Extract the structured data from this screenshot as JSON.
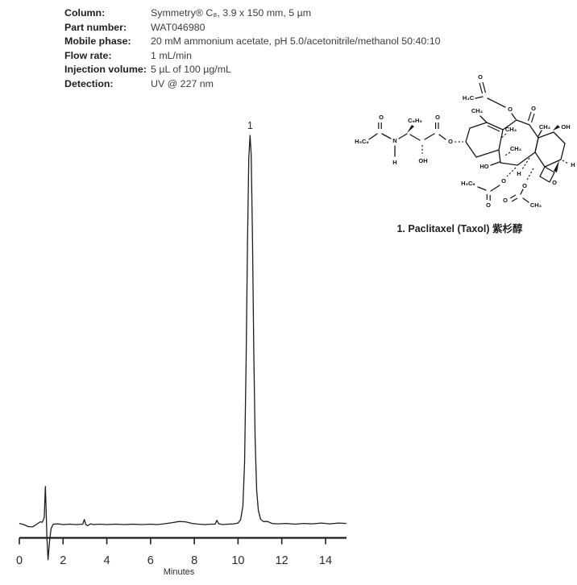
{
  "conditions": {
    "rows": [
      {
        "label": "Column:",
        "value": "Symmetry® C₈, 3.9 x 150 mm, 5 µm"
      },
      {
        "label": "Part number:",
        "value": "WAT046980"
      },
      {
        "label": "Mobile phase:",
        "value": "20 mM ammonium acetate, pH 5.0/acetonitrile/methanol 50:40:10"
      },
      {
        "label": "Flow rate:",
        "value": "1 mL/min"
      },
      {
        "label": "Injection volume:",
        "value": "5 µL of 100 µg/mL"
      },
      {
        "label": "Detection:",
        "value": "UV @ 227 nm"
      }
    ]
  },
  "structure": {
    "caption": "1. Paclitaxel (Taxol) 紫杉醇",
    "atom_labels": [
      "H₅C₆",
      "O",
      "N",
      "H",
      "C₆H₅",
      "OH",
      "O",
      "O",
      "CH₃",
      "O",
      "H₃C",
      "O",
      "O",
      "CH₃",
      "OH",
      "CH₃",
      "CH₃",
      "HO",
      "H",
      "H",
      "O",
      "H₅C₆",
      "O",
      "O",
      "O",
      "O",
      "CH₃"
    ]
  },
  "chart_data": {
    "type": "line",
    "title": "",
    "xlabel": "Minutes",
    "ylabel": "",
    "xlim": [
      0,
      15
    ],
    "ylim": [
      -0.1,
      1.08
    ],
    "x_ticks": [
      0,
      2,
      4,
      6,
      8,
      10,
      12,
      14
    ],
    "grid": false,
    "legend_position": "none",
    "peaks": [
      {
        "label": "1",
        "retention_time_min": 10.55,
        "relative_height": 1.0,
        "compound": "Paclitaxel (Taxol)"
      }
    ],
    "baseline_events": [
      {
        "description": "injection / solvent-front disturbance",
        "time_min": 1.25
      },
      {
        "description": "minor baseline bump",
        "time_min": 3.0
      },
      {
        "description": "minor baseline bump",
        "time_min": 9.05
      }
    ],
    "trace": [
      [
        0,
        0.005
      ],
      [
        0.2,
        0.002
      ],
      [
        0.4,
        -0.003
      ],
      [
        0.6,
        -0.004
      ],
      [
        0.8,
        0.003
      ],
      [
        0.95,
        0.009
      ],
      [
        1.05,
        0.008
      ],
      [
        1.14,
        0.02
      ],
      [
        1.19,
        0.1
      ],
      [
        1.22,
        0.05
      ],
      [
        1.26,
        -0.03
      ],
      [
        1.31,
        -0.088
      ],
      [
        1.38,
        -0.04
      ],
      [
        1.45,
        -0.008
      ],
      [
        1.55,
        0.003
      ],
      [
        1.75,
        0.004
      ],
      [
        2.0,
        0.002
      ],
      [
        2.3,
        0.003
      ],
      [
        2.6,
        0.002
      ],
      [
        2.9,
        0.003
      ],
      [
        2.97,
        0.015
      ],
      [
        3.04,
        0.002
      ],
      [
        3.12,
        -0.001
      ],
      [
        3.25,
        0.004
      ],
      [
        3.4,
        0.002
      ],
      [
        3.7,
        0.003
      ],
      [
        4.0,
        0.002
      ],
      [
        4.4,
        0.003
      ],
      [
        4.8,
        0.002
      ],
      [
        5.2,
        0.003
      ],
      [
        5.6,
        0.002
      ],
      [
        6.0,
        0.003
      ],
      [
        6.3,
        0.002
      ],
      [
        6.6,
        0.004
      ],
      [
        7.0,
        0.007
      ],
      [
        7.3,
        0.01
      ],
      [
        7.6,
        0.009
      ],
      [
        7.9,
        0.005
      ],
      [
        8.2,
        0.003
      ],
      [
        8.5,
        0.002
      ],
      [
        8.75,
        0.003
      ],
      [
        8.95,
        0.003
      ],
      [
        9.03,
        0.013
      ],
      [
        9.12,
        0.004
      ],
      [
        9.3,
        0.002
      ],
      [
        9.55,
        0.003
      ],
      [
        9.8,
        0.004
      ],
      [
        10.0,
        0.006
      ],
      [
        10.12,
        0.015
      ],
      [
        10.22,
        0.05
      ],
      [
        10.3,
        0.16
      ],
      [
        10.37,
        0.42
      ],
      [
        10.43,
        0.72
      ],
      [
        10.49,
        0.94
      ],
      [
        10.55,
        1.0
      ],
      [
        10.6,
        0.95
      ],
      [
        10.66,
        0.74
      ],
      [
        10.72,
        0.45
      ],
      [
        10.78,
        0.22
      ],
      [
        10.85,
        0.09
      ],
      [
        10.93,
        0.038
      ],
      [
        11.03,
        0.016
      ],
      [
        11.15,
        0.01
      ],
      [
        11.35,
        0.01
      ],
      [
        11.55,
        0.005
      ],
      [
        11.8,
        0.004
      ],
      [
        12.2,
        0.005
      ],
      [
        12.6,
        0.003
      ],
      [
        13.0,
        0.005
      ],
      [
        13.4,
        0.004
      ],
      [
        13.8,
        0.006
      ],
      [
        14.2,
        0.004
      ],
      [
        14.6,
        0.006
      ],
      [
        14.95,
        0.005
      ]
    ]
  },
  "colors": {
    "ink": "#1d1d1d",
    "text": "#3a3a3a"
  }
}
